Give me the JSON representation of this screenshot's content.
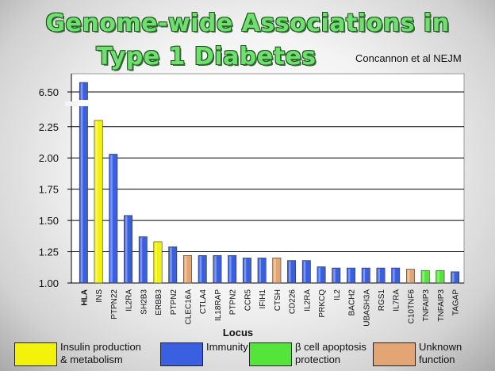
{
  "title": {
    "line1": "Genome-wide Associations in",
    "line2": "Type 1 Diabetes",
    "source": "Concannon et al NEJM"
  },
  "colors": {
    "insulin": "#f2f20a",
    "immunity": "#3a5fe0",
    "apoptosis": "#55e43a",
    "unknown": "#e3a574"
  },
  "legend": [
    {
      "key": "insulin",
      "line1": "Insulin production",
      "line2": "& metabolism"
    },
    {
      "key": "immunity",
      "line1": "Immunity",
      "line2": ""
    },
    {
      "key": "apoptosis",
      "line1": "β cell apoptosis",
      "line2": "protection"
    },
    {
      "key": "unknown",
      "line1": "Unknown",
      "line2": "function"
    }
  ],
  "chart_data": {
    "type": "bar",
    "xlabel": "Locus",
    "ylabel": "",
    "ylim": [
      1.0,
      6.5
    ],
    "axis_break": [
      2.35,
      6.4
    ],
    "y_ticks": [
      "1.00",
      "1.25",
      "1.50",
      "1.75",
      "2.00",
      "2.25",
      "6.50"
    ],
    "grid": true,
    "categories": [
      "HLA",
      "INS",
      "PTPN22",
      "IL2RA",
      "SH2B3",
      "ERBB3",
      "PTPN2",
      "CLEC16A",
      "CTLA4",
      "IL18RAP",
      "PTPN2",
      "CCR5",
      "IFIH1",
      "CTSH",
      "CD226",
      "IL2RA",
      "PRKCQ",
      "IL2",
      "BACH2",
      "UBASH3A",
      "RGS1",
      "IL7RA",
      "C10TNF6",
      "TNFAIP3",
      "TNFAIP3",
      "TAGAP"
    ],
    "values": [
      6.8,
      2.3,
      2.03,
      1.54,
      1.37,
      1.33,
      1.29,
      1.22,
      1.22,
      1.22,
      1.22,
      1.2,
      1.2,
      1.2,
      1.18,
      1.18,
      1.13,
      1.12,
      1.12,
      1.12,
      1.12,
      1.12,
      1.11,
      1.1,
      1.1,
      1.09
    ],
    "groups": [
      "immunity",
      "insulin",
      "immunity",
      "immunity",
      "immunity",
      "insulin",
      "immunity",
      "unknown",
      "immunity",
      "immunity",
      "immunity",
      "immunity",
      "immunity",
      "unknown",
      "immunity",
      "immunity",
      "immunity",
      "immunity",
      "immunity",
      "immunity",
      "immunity",
      "immunity",
      "unknown",
      "apoptosis",
      "apoptosis",
      "immunity"
    ]
  }
}
